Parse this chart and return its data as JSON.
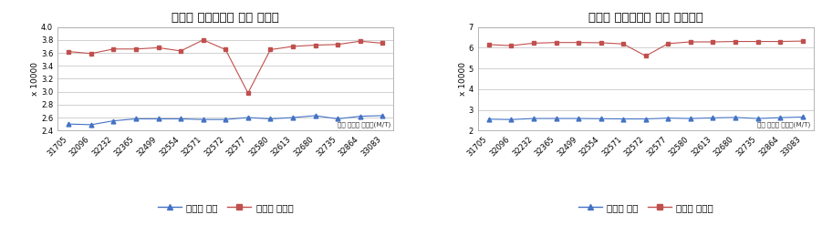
{
  "x_labels": [
    "31705",
    "32096",
    "32232",
    "32365",
    "32499",
    "32554",
    "32571",
    "32572",
    "32577",
    "32580",
    "32613",
    "32680",
    "32735",
    "32864",
    "33083"
  ],
  "chart1_title": "회수수 사용여부에 따른 폐수량",
  "chart1_blue": [
    2.5,
    2.49,
    2.55,
    2.58,
    2.58,
    2.58,
    2.57,
    2.57,
    2.6,
    2.58,
    2.6,
    2.63,
    2.58,
    2.62,
    2.63
  ],
  "chart1_red": [
    3.62,
    3.59,
    3.66,
    3.66,
    3.68,
    3.63,
    3.8,
    3.65,
    2.98,
    3.65,
    3.7,
    3.72,
    3.73,
    3.78,
    3.75
  ],
  "chart1_ylim": [
    2.4,
    4.0
  ],
  "chart1_yticks": [
    2.4,
    2.6,
    2.8,
    3.0,
    3.2,
    3.4,
    3.6,
    3.8,
    4.0
  ],
  "chart2_title": "회수수 사용여부에 따른 물사용량",
  "chart2_blue": [
    2.55,
    2.53,
    2.58,
    2.58,
    2.58,
    2.57,
    2.56,
    2.56,
    2.6,
    2.58,
    2.61,
    2.63,
    2.58,
    2.62,
    2.65
  ],
  "chart2_red": [
    6.15,
    6.1,
    6.22,
    6.25,
    6.25,
    6.24,
    6.18,
    5.6,
    6.2,
    6.28,
    6.28,
    6.3,
    6.3,
    6.3,
    6.32
  ],
  "chart2_ylim": [
    2.0,
    7.0
  ],
  "chart2_yticks": [
    2,
    3,
    4,
    5,
    6,
    7
  ],
  "ylabel_text": "x 10000",
  "legend_blue": "회수수 사용",
  "legend_red": "회수수 미사용",
  "xlabel_text": "섬유 제조량 미터톤(M/T)",
  "blue_color": "#4472C4",
  "red_color": "#C0504D",
  "bg_color": "#FFFFFF",
  "plot_bg": "#FFFFFF",
  "grid_color": "#BEBEBE",
  "border_color": "#AAAAAA"
}
